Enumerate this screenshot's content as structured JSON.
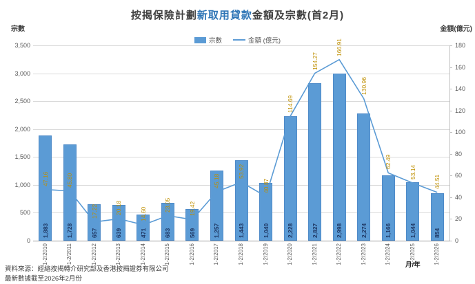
{
  "title": {
    "prefix": "按揭保險計劃",
    "highlight": "新取用貸款",
    "suffix": "金額及宗數(首2月)"
  },
  "legend": {
    "bar_label": "宗數",
    "line_label": "金額 (億元)"
  },
  "axes": {
    "left": {
      "title": "宗數",
      "ticks": [
        "3,500",
        "3,000",
        "2,500",
        "2,000",
        "1,500",
        "1,000",
        "500",
        "0"
      ],
      "max": 3500
    },
    "right": {
      "title": "金額(億元)",
      "ticks": [
        "180",
        "160",
        "140",
        "120",
        "100",
        "80",
        "60",
        "40",
        "20",
        "0"
      ],
      "max": 180
    },
    "x_title": "月/年"
  },
  "footer": {
    "source": "資料來源：經絡按揭轉介研究部及香港按揭證券有限公司",
    "updated": "最新數據截至2026年2月份"
  },
  "colors": {
    "bar": "#5B9BD5",
    "bar_border": "#4E8AC8",
    "line": "#5B9BD5",
    "bar_label": "#1F3864",
    "line_label": "#BF8F00",
    "title_text": "#404040",
    "title_highlight": "#2E75B6",
    "grid": "#D9D9D9",
    "axis_line": "#9B9B9B",
    "tick_text": "#595959"
  },
  "chart_data": {
    "type": "bar",
    "title": "按揭保險計劃新取用貸款金額及宗數(首2月)",
    "xlabel": "月/年",
    "left_ylabel": "宗數",
    "right_ylabel": "金額(億元)",
    "left_ylim": [
      0,
      3500
    ],
    "right_ylim": [
      0,
      180
    ],
    "grid": true,
    "legend_position": "top",
    "categories": [
      "1-2/2010",
      "1-2/2011",
      "1-2/2012",
      "1-2/2013",
      "1-2/2014",
      "1-2/2015",
      "1-2/2016",
      "1-2/2017",
      "1-2/2018",
      "1-2/2019",
      "1-2/2020",
      "1-2/2021",
      "1-2/2022",
      "1-2/2023",
      "1-2/2024",
      "1-2/2025",
      "1-2/2026"
    ],
    "series": [
      {
        "name": "宗數",
        "type": "bar",
        "axis": "left",
        "values": [
          1883,
          1728,
          657,
          639,
          471,
          683,
          569,
          1257,
          1443,
          1040,
          2228,
          2827,
          2998,
          2274,
          1166,
          1044,
          854
        ],
        "labels": [
          "1,883",
          "1,728",
          "657",
          "639",
          "471",
          "683",
          "569",
          "1,257",
          "1,443",
          "1,040",
          "2,228",
          "2,827",
          "2,998",
          "2,274",
          "1,166",
          "1,044",
          "854"
        ]
      },
      {
        "name": "金額 (億元)",
        "type": "line",
        "axis": "right",
        "values": [
          47.16,
          45.8,
          17.22,
          20.18,
          14.6,
          23.05,
          19.42,
          45.18,
          53.92,
          40.87,
          114.69,
          154.27,
          166.91,
          130.96,
          62.49,
          53.14,
          44.51
        ],
        "labels": [
          "47.16",
          "45.80",
          "17.22",
          "20.18",
          "14.60",
          "23.05",
          "19.42",
          "45.18",
          "53.92",
          "40.87",
          "114.69",
          "154.27",
          "166.91",
          "130.96",
          "62.49",
          "53.14",
          "44.51"
        ]
      }
    ]
  }
}
